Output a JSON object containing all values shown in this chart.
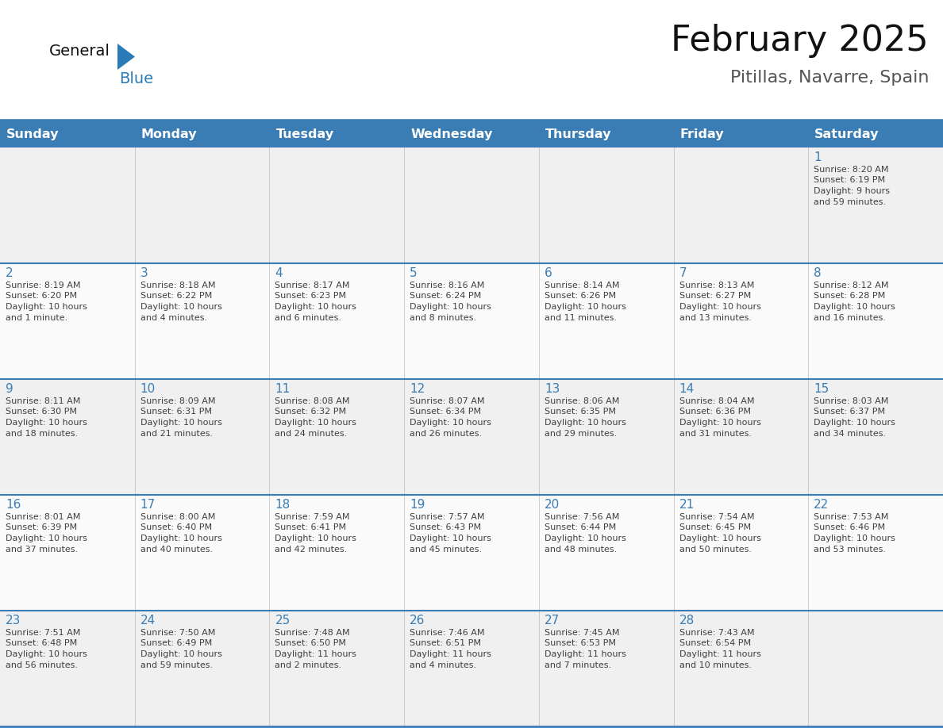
{
  "title": "February 2025",
  "subtitle": "Pitillas, Navarre, Spain",
  "header_color": "#3A7DB5",
  "header_text_color": "#FFFFFF",
  "row_bg_odd": "#F0F0F0",
  "row_bg_even": "#FAFAFA",
  "border_color": "#3A7DB5",
  "day_number_color": "#3A7DB5",
  "text_color": "#404040",
  "days_of_week": [
    "Sunday",
    "Monday",
    "Tuesday",
    "Wednesday",
    "Thursday",
    "Friday",
    "Saturday"
  ],
  "calendar_data": [
    [
      null,
      null,
      null,
      null,
      null,
      null,
      {
        "day": "1",
        "sunrise": "8:20 AM",
        "sunset": "6:19 PM",
        "daylight_line1": "Daylight: 9 hours",
        "daylight_line2": "and 59 minutes."
      }
    ],
    [
      {
        "day": "2",
        "sunrise": "8:19 AM",
        "sunset": "6:20 PM",
        "daylight_line1": "Daylight: 10 hours",
        "daylight_line2": "and 1 minute."
      },
      {
        "day": "3",
        "sunrise": "8:18 AM",
        "sunset": "6:22 PM",
        "daylight_line1": "Daylight: 10 hours",
        "daylight_line2": "and 4 minutes."
      },
      {
        "day": "4",
        "sunrise": "8:17 AM",
        "sunset": "6:23 PM",
        "daylight_line1": "Daylight: 10 hours",
        "daylight_line2": "and 6 minutes."
      },
      {
        "day": "5",
        "sunrise": "8:16 AM",
        "sunset": "6:24 PM",
        "daylight_line1": "Daylight: 10 hours",
        "daylight_line2": "and 8 minutes."
      },
      {
        "day": "6",
        "sunrise": "8:14 AM",
        "sunset": "6:26 PM",
        "daylight_line1": "Daylight: 10 hours",
        "daylight_line2": "and 11 minutes."
      },
      {
        "day": "7",
        "sunrise": "8:13 AM",
        "sunset": "6:27 PM",
        "daylight_line1": "Daylight: 10 hours",
        "daylight_line2": "and 13 minutes."
      },
      {
        "day": "8",
        "sunrise": "8:12 AM",
        "sunset": "6:28 PM",
        "daylight_line1": "Daylight: 10 hours",
        "daylight_line2": "and 16 minutes."
      }
    ],
    [
      {
        "day": "9",
        "sunrise": "8:11 AM",
        "sunset": "6:30 PM",
        "daylight_line1": "Daylight: 10 hours",
        "daylight_line2": "and 18 minutes."
      },
      {
        "day": "10",
        "sunrise": "8:09 AM",
        "sunset": "6:31 PM",
        "daylight_line1": "Daylight: 10 hours",
        "daylight_line2": "and 21 minutes."
      },
      {
        "day": "11",
        "sunrise": "8:08 AM",
        "sunset": "6:32 PM",
        "daylight_line1": "Daylight: 10 hours",
        "daylight_line2": "and 24 minutes."
      },
      {
        "day": "12",
        "sunrise": "8:07 AM",
        "sunset": "6:34 PM",
        "daylight_line1": "Daylight: 10 hours",
        "daylight_line2": "and 26 minutes."
      },
      {
        "day": "13",
        "sunrise": "8:06 AM",
        "sunset": "6:35 PM",
        "daylight_line1": "Daylight: 10 hours",
        "daylight_line2": "and 29 minutes."
      },
      {
        "day": "14",
        "sunrise": "8:04 AM",
        "sunset": "6:36 PM",
        "daylight_line1": "Daylight: 10 hours",
        "daylight_line2": "and 31 minutes."
      },
      {
        "day": "15",
        "sunrise": "8:03 AM",
        "sunset": "6:37 PM",
        "daylight_line1": "Daylight: 10 hours",
        "daylight_line2": "and 34 minutes."
      }
    ],
    [
      {
        "day": "16",
        "sunrise": "8:01 AM",
        "sunset": "6:39 PM",
        "daylight_line1": "Daylight: 10 hours",
        "daylight_line2": "and 37 minutes."
      },
      {
        "day": "17",
        "sunrise": "8:00 AM",
        "sunset": "6:40 PM",
        "daylight_line1": "Daylight: 10 hours",
        "daylight_line2": "and 40 minutes."
      },
      {
        "day": "18",
        "sunrise": "7:59 AM",
        "sunset": "6:41 PM",
        "daylight_line1": "Daylight: 10 hours",
        "daylight_line2": "and 42 minutes."
      },
      {
        "day": "19",
        "sunrise": "7:57 AM",
        "sunset": "6:43 PM",
        "daylight_line1": "Daylight: 10 hours",
        "daylight_line2": "and 45 minutes."
      },
      {
        "day": "20",
        "sunrise": "7:56 AM",
        "sunset": "6:44 PM",
        "daylight_line1": "Daylight: 10 hours",
        "daylight_line2": "and 48 minutes."
      },
      {
        "day": "21",
        "sunrise": "7:54 AM",
        "sunset": "6:45 PM",
        "daylight_line1": "Daylight: 10 hours",
        "daylight_line2": "and 50 minutes."
      },
      {
        "day": "22",
        "sunrise": "7:53 AM",
        "sunset": "6:46 PM",
        "daylight_line1": "Daylight: 10 hours",
        "daylight_line2": "and 53 minutes."
      }
    ],
    [
      {
        "day": "23",
        "sunrise": "7:51 AM",
        "sunset": "6:48 PM",
        "daylight_line1": "Daylight: 10 hours",
        "daylight_line2": "and 56 minutes."
      },
      {
        "day": "24",
        "sunrise": "7:50 AM",
        "sunset": "6:49 PM",
        "daylight_line1": "Daylight: 10 hours",
        "daylight_line2": "and 59 minutes."
      },
      {
        "day": "25",
        "sunrise": "7:48 AM",
        "sunset": "6:50 PM",
        "daylight_line1": "Daylight: 11 hours",
        "daylight_line2": "and 2 minutes."
      },
      {
        "day": "26",
        "sunrise": "7:46 AM",
        "sunset": "6:51 PM",
        "daylight_line1": "Daylight: 11 hours",
        "daylight_line2": "and 4 minutes."
      },
      {
        "day": "27",
        "sunrise": "7:45 AM",
        "sunset": "6:53 PM",
        "daylight_line1": "Daylight: 11 hours",
        "daylight_line2": "and 7 minutes."
      },
      {
        "day": "28",
        "sunrise": "7:43 AM",
        "sunset": "6:54 PM",
        "daylight_line1": "Daylight: 11 hours",
        "daylight_line2": "and 10 minutes."
      },
      null
    ]
  ],
  "title_fontsize": 32,
  "subtitle_fontsize": 16,
  "header_fontsize": 11.5,
  "day_number_fontsize": 11,
  "cell_text_fontsize": 8.0
}
